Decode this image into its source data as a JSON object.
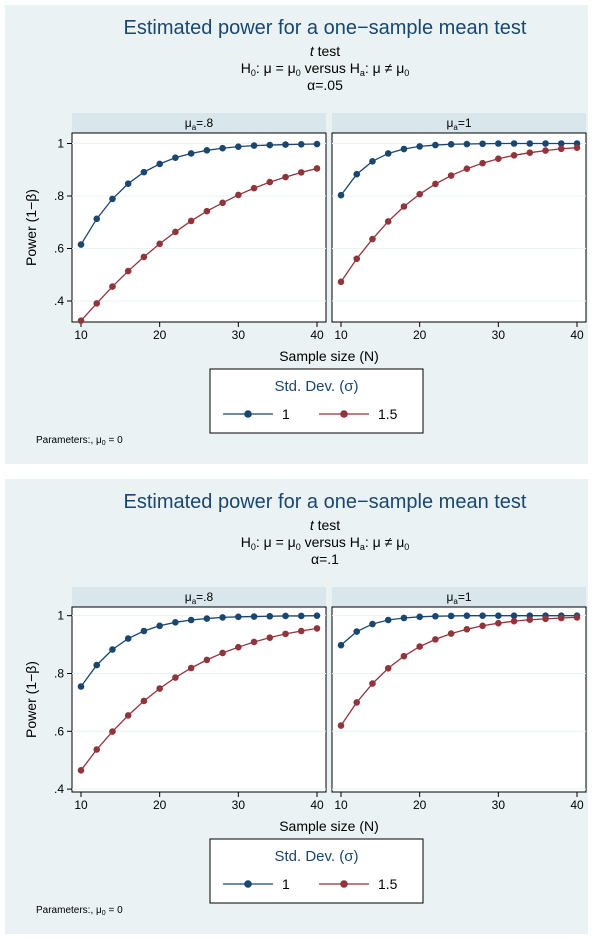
{
  "colors": {
    "background": "#eaf2f3",
    "panel_strip": "#d9e6eb",
    "title": "#1a476f",
    "series_1": "#1a476f",
    "series_15": "#90353b"
  },
  "chart_data": [
    {
      "type": "line",
      "title": "Estimated power for a one−sample mean test",
      "subtitle_line1": "t test",
      "subtitle_line2": {
        "h0_text": "H",
        "h0_sub": "0",
        "h0_rest": ": μ = μ",
        "h0_sub2": "0",
        "mid": "  versus  ",
        "ha_text": "H",
        "ha_sub": "a",
        "ha_rest": ": μ ≠ μ",
        "ha_sub2": "0"
      },
      "subtitle_line3": "α=.05",
      "ylabel": "Power (1−β)",
      "xlabel": "Sample size (N)",
      "xlim": [
        10,
        40
      ],
      "ylim": [
        0.32,
        1.04
      ],
      "x_ticks": [
        "10",
        "20",
        "30",
        "40"
      ],
      "y_ticks": [
        {
          "value": 1,
          "label": "1"
        },
        {
          "value": 0.8,
          "label": ".8"
        },
        {
          "value": 0.6,
          "label": ".6"
        },
        {
          "value": 0.4,
          "label": ".4"
        }
      ],
      "legend_title": "Std. Dev. (σ)",
      "legend_entries": [
        "1",
        "1.5"
      ],
      "note": {
        "prefix": "Parameters:, μ",
        "sub": "0",
        "suffix": " = 0"
      },
      "x": [
        10,
        12,
        14,
        16,
        18,
        20,
        22,
        24,
        26,
        28,
        30,
        32,
        34,
        36,
        38,
        40
      ],
      "panels": [
        {
          "label_pre": "μ",
          "label_sub": "a",
          "label_post": "=.8",
          "series": [
            {
              "name": "1",
              "values": [
                0.615,
                0.713,
                0.789,
                0.847,
                0.891,
                0.922,
                0.946,
                0.962,
                0.974,
                0.982,
                0.988,
                0.992,
                0.994,
                0.996,
                0.997,
                0.998
              ]
            },
            {
              "name": "1.5",
              "values": [
                0.325,
                0.391,
                0.455,
                0.514,
                0.568,
                0.618,
                0.663,
                0.705,
                0.742,
                0.774,
                0.804,
                0.83,
                0.853,
                0.872,
                0.89,
                0.905
              ]
            }
          ]
        },
        {
          "label_pre": "μ",
          "label_sub": "a",
          "label_post": "=1",
          "series": [
            {
              "name": "1",
              "values": [
                0.803,
                0.883,
                0.932,
                0.962,
                0.979,
                0.989,
                0.994,
                0.997,
                0.998,
                0.999,
                1.0,
                1.0,
                1.0,
                1.0,
                1.0,
                1.0
              ]
            },
            {
              "name": "1.5",
              "values": [
                0.473,
                0.561,
                0.636,
                0.703,
                0.76,
                0.807,
                0.846,
                0.878,
                0.904,
                0.925,
                0.942,
                0.955,
                0.965,
                0.973,
                0.98,
                0.984
              ]
            }
          ]
        }
      ]
    },
    {
      "type": "line",
      "title": "Estimated power for a one−sample mean test",
      "subtitle_line1": "t test",
      "subtitle_line2": {
        "h0_text": "H",
        "h0_sub": "0",
        "h0_rest": ": μ = μ",
        "h0_sub2": "0",
        "mid": "  versus  ",
        "ha_text": "H",
        "ha_sub": "a",
        "ha_rest": ": μ ≠ μ",
        "ha_sub2": "0"
      },
      "subtitle_line3": "α=.1",
      "ylabel": "Power (1−β)",
      "xlabel": "Sample size (N)",
      "xlim": [
        10,
        40
      ],
      "ylim": [
        0.39,
        1.03
      ],
      "x_ticks": [
        "10",
        "20",
        "30",
        "40"
      ],
      "y_ticks": [
        {
          "value": 1,
          "label": "1"
        },
        {
          "value": 0.8,
          "label": ".8"
        },
        {
          "value": 0.6,
          "label": ".6"
        },
        {
          "value": 0.4,
          "label": ".4"
        }
      ],
      "legend_title": "Std. Dev. (σ)",
      "legend_entries": [
        "1",
        "1.5"
      ],
      "note": {
        "prefix": "Parameters:, μ",
        "sub": "0",
        "suffix": " = 0"
      },
      "x": [
        10,
        12,
        14,
        16,
        18,
        20,
        22,
        24,
        26,
        28,
        30,
        32,
        34,
        36,
        38,
        40
      ],
      "panels": [
        {
          "label_pre": "μ",
          "label_sub": "a",
          "label_post": "=.8",
          "series": [
            {
              "name": "1",
              "values": [
                0.755,
                0.829,
                0.883,
                0.921,
                0.947,
                0.965,
                0.977,
                0.985,
                0.99,
                0.994,
                0.996,
                0.997,
                0.998,
                0.999,
                0.999,
                1.0
              ]
            },
            {
              "name": "1.5",
              "values": [
                0.465,
                0.537,
                0.599,
                0.655,
                0.705,
                0.748,
                0.786,
                0.819,
                0.847,
                0.871,
                0.891,
                0.909,
                0.924,
                0.937,
                0.947,
                0.956
              ]
            }
          ]
        },
        {
          "label_pre": "μ",
          "label_sub": "a",
          "label_post": "=1",
          "series": [
            {
              "name": "1",
              "values": [
                0.898,
                0.945,
                0.971,
                0.985,
                0.992,
                0.996,
                0.998,
                0.999,
                1.0,
                1.0,
                1.0,
                1.0,
                1.0,
                1.0,
                1.0,
                1.0
              ]
            },
            {
              "name": "1.5",
              "values": [
                0.62,
                0.7,
                0.765,
                0.818,
                0.86,
                0.893,
                0.918,
                0.938,
                0.953,
                0.965,
                0.974,
                0.981,
                0.986,
                0.989,
                0.992,
                0.994
              ]
            }
          ]
        }
      ]
    }
  ]
}
